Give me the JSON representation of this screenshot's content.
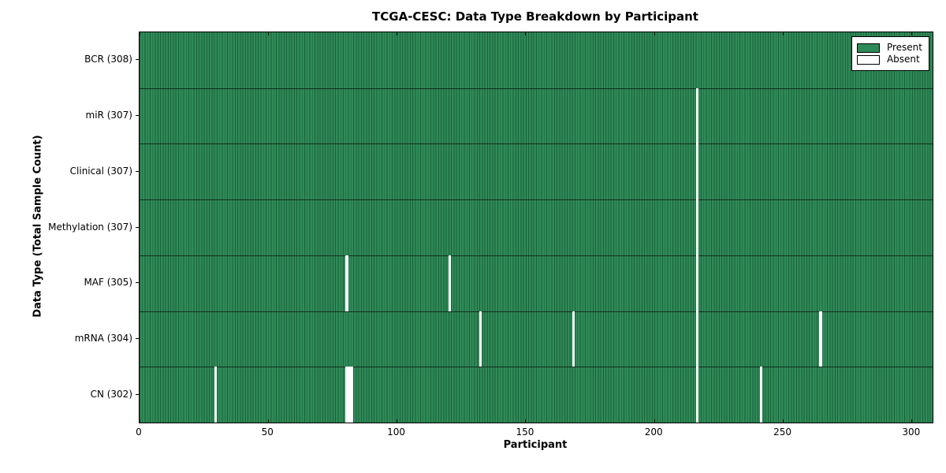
{
  "chart_data": {
    "type": "heatmap",
    "title": "TCGA-CESC: Data Type Breakdown by Participant",
    "xlabel": "Participant",
    "ylabel": "Data Type (Total Sample Count)",
    "xlim": [
      0,
      308
    ],
    "x_ticks": [
      0,
      50,
      100,
      150,
      200,
      250,
      300
    ],
    "n_participants": 308,
    "grid": false,
    "legend_position": "upper right",
    "legend": [
      {
        "label": "Present",
        "color": "#2e8b57"
      },
      {
        "label": "Absent",
        "color": "#ffffff"
      }
    ],
    "rows": [
      {
        "label": "BCR (308)",
        "data_type": "BCR",
        "present_count": 308,
        "absent_participants": []
      },
      {
        "label": "miR (307)",
        "data_type": "miR",
        "present_count": 307,
        "absent_participants": [
          216
        ]
      },
      {
        "label": "Clinical (307)",
        "data_type": "Clinical",
        "present_count": 307,
        "absent_participants": [
          216
        ]
      },
      {
        "label": "Methylation (307)",
        "data_type": "Methylation",
        "present_count": 307,
        "absent_participants": [
          216
        ]
      },
      {
        "label": "MAF (305)",
        "data_type": "MAF",
        "present_count": 305,
        "absent_participants": [
          80,
          120,
          216
        ]
      },
      {
        "label": "mRNA (304)",
        "data_type": "mRNA",
        "present_count": 304,
        "absent_participants": [
          132,
          168,
          216,
          264
        ]
      },
      {
        "label": "CN (302)",
        "data_type": "CN",
        "present_count": 302,
        "absent_participants": [
          29,
          80,
          81,
          82,
          216,
          241
        ]
      }
    ],
    "colors": {
      "present": "#2e8b57",
      "present_edge": "#1f5f3d",
      "absent": "#ffffff",
      "separator": "#142c1c",
      "axis": "#000000"
    }
  }
}
